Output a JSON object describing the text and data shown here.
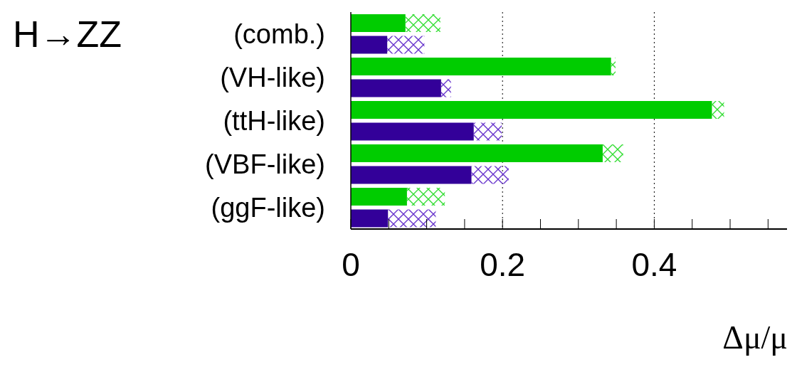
{
  "chart_data": {
    "type": "bar",
    "orientation": "horizontal",
    "stacked": true,
    "categories": [
      "(comb.)",
      null,
      "(VH-like)",
      null,
      "(ttH-like)",
      null,
      "(VBF-like)",
      null,
      "(ggF-like)",
      null
    ],
    "series": [
      {
        "colors": [
          "#00cc00",
          "#330099",
          "#00cc00",
          "#330099",
          "#00cc00",
          "#330099",
          "#00cc00",
          "#330099",
          "#00cc00",
          "#330099"
        ],
        "values": [
          0.072,
          0.048,
          0.343,
          0.119,
          0.476,
          0.162,
          0.332,
          0.159,
          0.074,
          0.049
        ]
      },
      {
        "colors": [
          "#33dd33",
          "#6633cc",
          "#33dd33",
          "#6633cc",
          "#33dd33",
          "#6633cc",
          "#33dd33",
          "#6633cc",
          "#33dd33",
          "#6633cc"
        ],
        "values": [
          0.046,
          0.049,
          0.006,
          0.013,
          0.016,
          0.037,
          0.027,
          0.049,
          0.05,
          0.063
        ]
      }
    ],
    "xlim": [
      0,
      0.575
    ],
    "xticks": [
      0,
      {
        "value": 0.05,
        "label": null
      },
      {
        "value": 0.1,
        "label": null
      },
      {
        "value": 0.15,
        "label": null
      },
      0.2,
      {
        "value": 0.25,
        "label": null
      },
      {
        "value": 0.3,
        "label": null
      },
      {
        "value": 0.35,
        "label": null
      },
      0.4,
      {
        "value": 0.45,
        "label": null
      },
      {
        "value": 0.5,
        "label": null
      },
      {
        "value": 0.55,
        "label": null
      }
    ],
    "xlabel": "Δμ/μ",
    "annotations": [
      "H→ZZ"
    ],
    "grid": "x",
    "legend": false
  }
}
